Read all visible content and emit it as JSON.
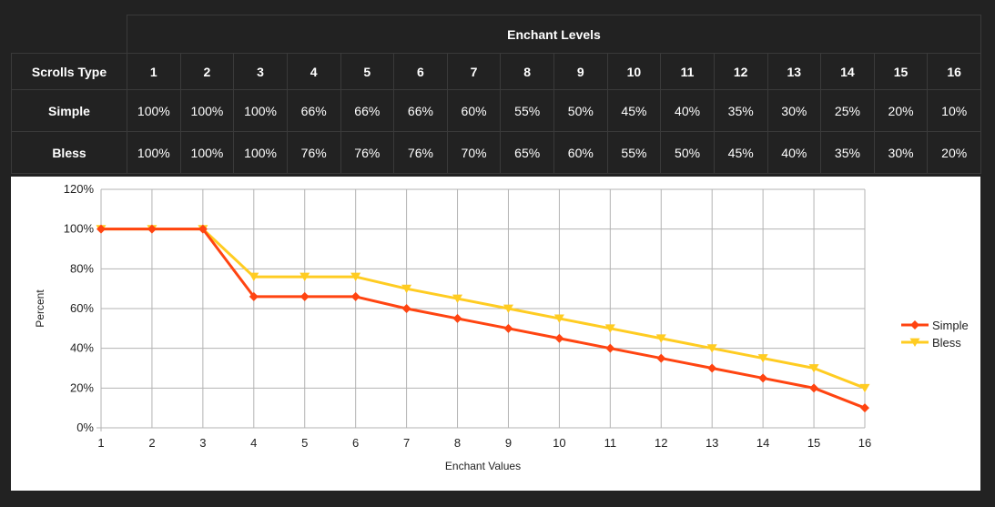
{
  "table": {
    "title": "Enchant Levels",
    "header_label": "Scrolls Type",
    "levels": [
      "1",
      "2",
      "3",
      "4",
      "5",
      "6",
      "7",
      "8",
      "9",
      "10",
      "11",
      "12",
      "13",
      "14",
      "15",
      "16"
    ],
    "rows": [
      {
        "label": "Simple",
        "values": [
          "100%",
          "100%",
          "100%",
          "66%",
          "66%",
          "66%",
          "60%",
          "55%",
          "50%",
          "45%",
          "40%",
          "35%",
          "30%",
          "25%",
          "20%",
          "10%"
        ]
      },
      {
        "label": "Bless",
        "values": [
          "100%",
          "100%",
          "100%",
          "76%",
          "76%",
          "76%",
          "70%",
          "65%",
          "60%",
          "55%",
          "50%",
          "45%",
          "40%",
          "35%",
          "30%",
          "20%"
        ]
      }
    ]
  },
  "chart_data": {
    "type": "line",
    "title": "",
    "xlabel": "Enchant Values",
    "ylabel": "Percent",
    "x": [
      1,
      2,
      3,
      4,
      5,
      6,
      7,
      8,
      9,
      10,
      11,
      12,
      13,
      14,
      15,
      16
    ],
    "ylim": [
      0,
      120
    ],
    "yticks": [
      "0%",
      "20%",
      "40%",
      "60%",
      "80%",
      "100%",
      "120%"
    ],
    "ytick_values": [
      0,
      20,
      40,
      60,
      80,
      100,
      120
    ],
    "grid": true,
    "legend_position": "right",
    "series": [
      {
        "name": "Simple",
        "color": "#ff4411",
        "marker": "diamond",
        "values": [
          100,
          100,
          100,
          66,
          66,
          66,
          60,
          55,
          50,
          45,
          40,
          35,
          30,
          25,
          20,
          10
        ]
      },
      {
        "name": "Bless",
        "color": "#ffcc22",
        "marker": "triangle-down",
        "values": [
          100,
          100,
          100,
          76,
          76,
          76,
          70,
          65,
          60,
          55,
          50,
          45,
          40,
          35,
          30,
          20
        ]
      }
    ]
  }
}
